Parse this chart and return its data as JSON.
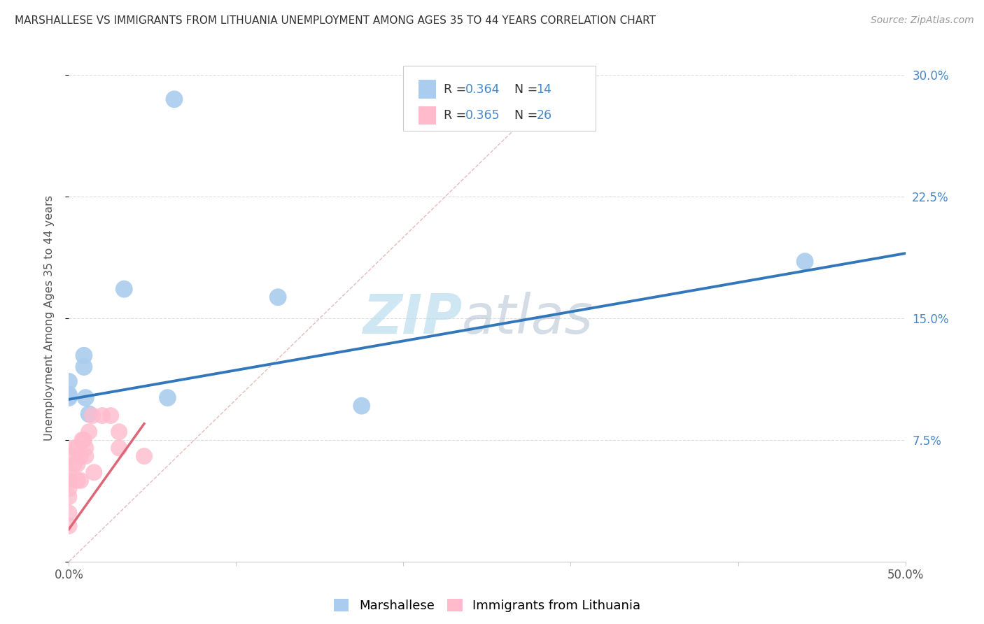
{
  "title": "MARSHALLESE VS IMMIGRANTS FROM LITHUANIA UNEMPLOYMENT AMONG AGES 35 TO 44 YEARS CORRELATION CHART",
  "source": "Source: ZipAtlas.com",
  "ylabel": "Unemployment Among Ages 35 to 44 years",
  "xlim": [
    0.0,
    0.5
  ],
  "ylim": [
    0.0,
    0.3
  ],
  "xticks": [
    0.0,
    0.1,
    0.2,
    0.3,
    0.4,
    0.5
  ],
  "xticklabels": [
    "0.0%",
    "",
    "",
    "",
    "",
    "50.0%"
  ],
  "yticks": [
    0.0,
    0.075,
    0.15,
    0.225,
    0.3
  ],
  "yticklabels_right": [
    "",
    "7.5%",
    "15.0%",
    "22.5%",
    "30.0%"
  ],
  "blue_R": 0.364,
  "blue_N": 14,
  "pink_R": 0.365,
  "pink_N": 26,
  "blue_color": "#aaccee",
  "pink_color": "#ffbbcc",
  "blue_line_color": "#3377bb",
  "pink_line_color": "#dd6677",
  "ref_line_color": "#ddaaaa",
  "watermark_zip": "ZIP",
  "watermark_atlas": "atlas",
  "legend_label_blue": "Marshallese",
  "legend_label_pink": "Immigrants from Lithuania",
  "blue_points": [
    [
      0.0,
      0.111
    ],
    [
      0.0,
      0.101
    ],
    [
      0.009,
      0.127
    ],
    [
      0.009,
      0.12
    ],
    [
      0.01,
      0.101
    ],
    [
      0.0,
      0.102
    ],
    [
      0.033,
      0.168
    ],
    [
      0.059,
      0.101
    ],
    [
      0.012,
      0.091
    ],
    [
      0.0,
      0.103
    ],
    [
      0.063,
      0.285
    ],
    [
      0.125,
      0.163
    ],
    [
      0.175,
      0.096
    ],
    [
      0.44,
      0.185
    ]
  ],
  "pink_points": [
    [
      0.0,
      0.04
    ],
    [
      0.0,
      0.05
    ],
    [
      0.0,
      0.065
    ],
    [
      0.0,
      0.03
    ],
    [
      0.0,
      0.022
    ],
    [
      0.0,
      0.045
    ],
    [
      0.0,
      0.055
    ],
    [
      0.003,
      0.07
    ],
    [
      0.003,
      0.06
    ],
    [
      0.005,
      0.06
    ],
    [
      0.005,
      0.07
    ],
    [
      0.005,
      0.05
    ],
    [
      0.007,
      0.05
    ],
    [
      0.007,
      0.065
    ],
    [
      0.008,
      0.075
    ],
    [
      0.009,
      0.075
    ],
    [
      0.01,
      0.07
    ],
    [
      0.01,
      0.065
    ],
    [
      0.012,
      0.08
    ],
    [
      0.014,
      0.09
    ],
    [
      0.015,
      0.055
    ],
    [
      0.02,
      0.09
    ],
    [
      0.025,
      0.09
    ],
    [
      0.03,
      0.08
    ],
    [
      0.03,
      0.07
    ],
    [
      0.045,
      0.065
    ]
  ],
  "blue_trend_x": [
    0.0,
    0.5
  ],
  "blue_trend_y": [
    0.1,
    0.19
  ],
  "pink_trend_x": [
    0.0,
    0.045
  ],
  "pink_trend_y": [
    0.02,
    0.085
  ],
  "ref_line_x": [
    0.0,
    0.3
  ],
  "ref_line_y": [
    0.0,
    0.3
  ],
  "background_color": "#ffffff",
  "grid_color": "#dddddd"
}
